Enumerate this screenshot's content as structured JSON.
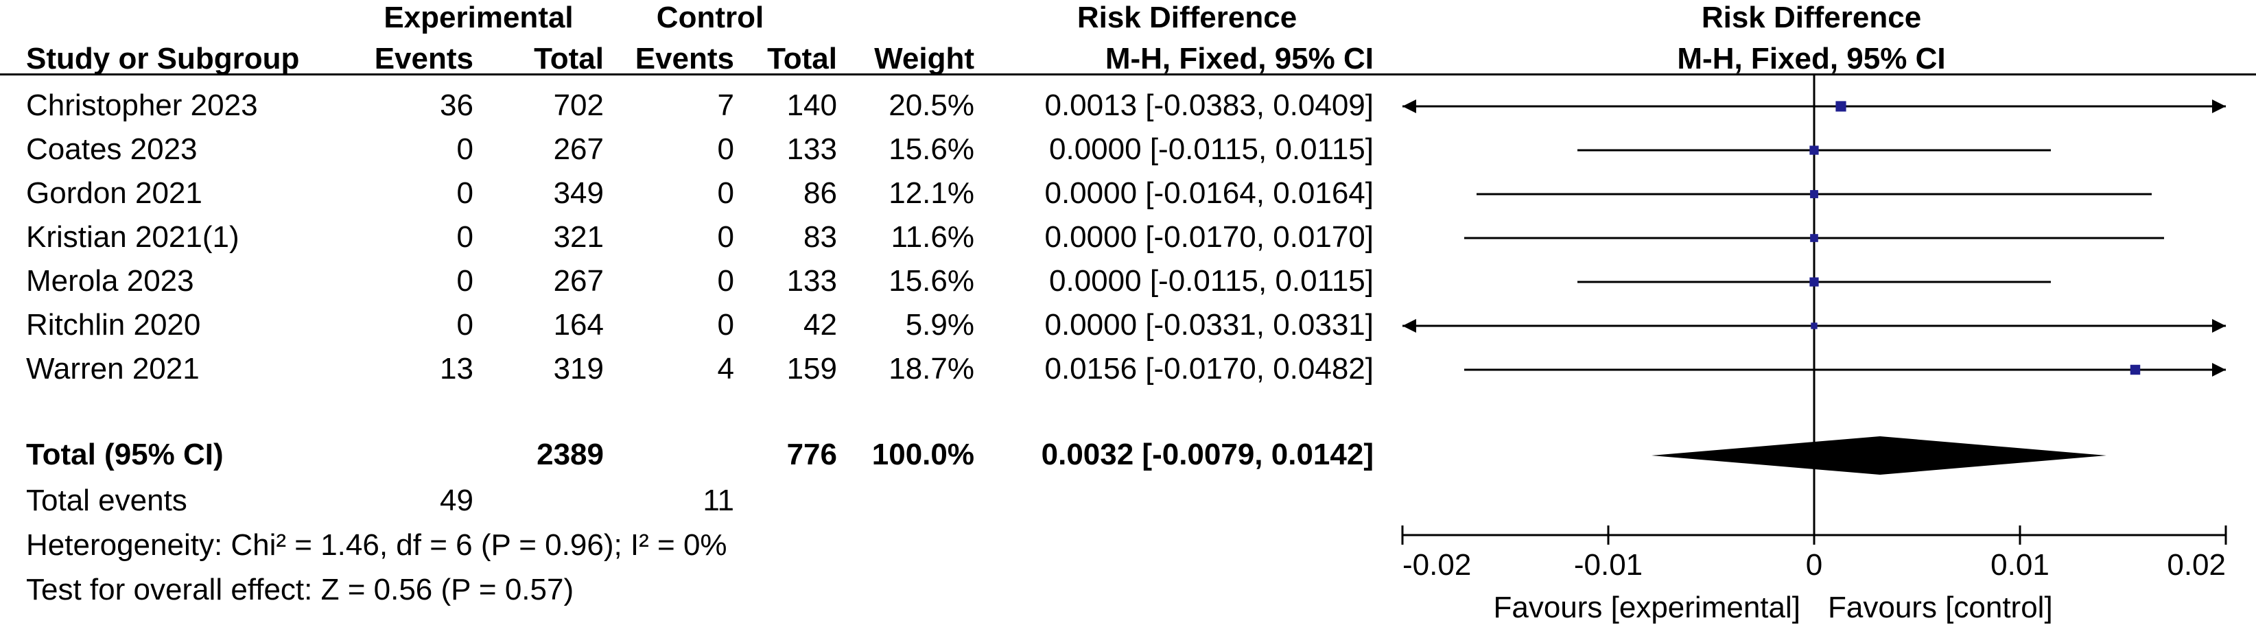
{
  "header": {
    "group_experimental": "Experimental",
    "group_control": "Control",
    "effect_title": "Risk Difference",
    "col_study": "Study or Subgroup",
    "col_exp_events": "Events",
    "col_exp_total": "Total",
    "col_ctl_events": "Events",
    "col_ctl_total": "Total",
    "col_weight": "Weight",
    "col_method": "M-H, Fixed, 95% CI",
    "plot_title": "Risk Difference",
    "plot_method": "M-H, Fixed, 95% CI"
  },
  "studies": [
    {
      "name": "Christopher 2023",
      "exp_events": "36",
      "exp_total": "702",
      "ctl_events": "7",
      "ctl_total": "140",
      "weight": "20.5%",
      "ci_text": "0.0013 [-0.0383, 0.0409]"
    },
    {
      "name": "Coates 2023",
      "exp_events": "0",
      "exp_total": "267",
      "ctl_events": "0",
      "ctl_total": "133",
      "weight": "15.6%",
      "ci_text": "0.0000 [-0.0115, 0.0115]"
    },
    {
      "name": "Gordon 2021",
      "exp_events": "0",
      "exp_total": "349",
      "ctl_events": "0",
      "ctl_total": "86",
      "weight": "12.1%",
      "ci_text": "0.0000 [-0.0164, 0.0164]"
    },
    {
      "name": "Kristian 2021(1)",
      "exp_events": "0",
      "exp_total": "321",
      "ctl_events": "0",
      "ctl_total": "83",
      "weight": "11.6%",
      "ci_text": "0.0000 [-0.0170, 0.0170]"
    },
    {
      "name": "Merola 2023",
      "exp_events": "0",
      "exp_total": "267",
      "ctl_events": "0",
      "ctl_total": "133",
      "weight": "15.6%",
      "ci_text": "0.0000 [-0.0115, 0.0115]"
    },
    {
      "name": "Ritchlin 2020",
      "exp_events": "0",
      "exp_total": "164",
      "ctl_events": "0",
      "ctl_total": "42",
      "weight": "5.9%",
      "ci_text": "0.0000 [-0.0331, 0.0331]"
    },
    {
      "name": "Warren 2021",
      "exp_events": "13",
      "exp_total": "319",
      "ctl_events": "4",
      "ctl_total": "159",
      "weight": "18.7%",
      "ci_text": "0.0156 [-0.0170, 0.0482]"
    }
  ],
  "total": {
    "label": "Total (95% CI)",
    "exp_total": "2389",
    "ctl_total": "776",
    "weight": "100.0%",
    "ci_text": "0.0032 [-0.0079, 0.0142]"
  },
  "events": {
    "label": "Total events",
    "exp": "49",
    "ctl": "11"
  },
  "heterogeneity": "Heterogeneity: Chi² = 1.46, df = 6 (P = 0.96); I² = 0%",
  "overall_effect": "Test for overall effect: Z = 0.56 (P = 0.57)",
  "colors": {
    "marker": "#1f1f8f",
    "line": "#000000",
    "diamond": "#000000"
  },
  "chart_data": {
    "type": "forest",
    "title": "Risk Difference",
    "subtitle": "M-H, Fixed, 95% CI",
    "xlim": [
      -0.02,
      0.02
    ],
    "ticks": [
      -0.02,
      -0.01,
      0,
      0.01,
      0.02
    ],
    "tick_labels": [
      "-0.02",
      "-0.01",
      "0",
      "0.01",
      "0.02"
    ],
    "xlabel_left": "Favours [experimental]",
    "xlabel_right": "Favours [control]",
    "studies": [
      {
        "name": "Christopher 2023",
        "est": 0.0013,
        "lo": -0.0383,
        "hi": 0.0409,
        "weight": 20.5
      },
      {
        "name": "Coates 2023",
        "est": 0.0,
        "lo": -0.0115,
        "hi": 0.0115,
        "weight": 15.6
      },
      {
        "name": "Gordon 2021",
        "est": 0.0,
        "lo": -0.0164,
        "hi": 0.0164,
        "weight": 12.1
      },
      {
        "name": "Kristian 2021(1)",
        "est": 0.0,
        "lo": -0.017,
        "hi": 0.017,
        "weight": 11.6
      },
      {
        "name": "Merola 2023",
        "est": 0.0,
        "lo": -0.0115,
        "hi": 0.0115,
        "weight": 15.6
      },
      {
        "name": "Ritchlin 2020",
        "est": 0.0,
        "lo": -0.0331,
        "hi": 0.0331,
        "weight": 5.9
      },
      {
        "name": "Warren 2021",
        "est": 0.0156,
        "lo": -0.017,
        "hi": 0.0482,
        "weight": 18.7
      }
    ],
    "pooled": {
      "est": 0.0032,
      "lo": -0.0079,
      "hi": 0.0142
    }
  }
}
